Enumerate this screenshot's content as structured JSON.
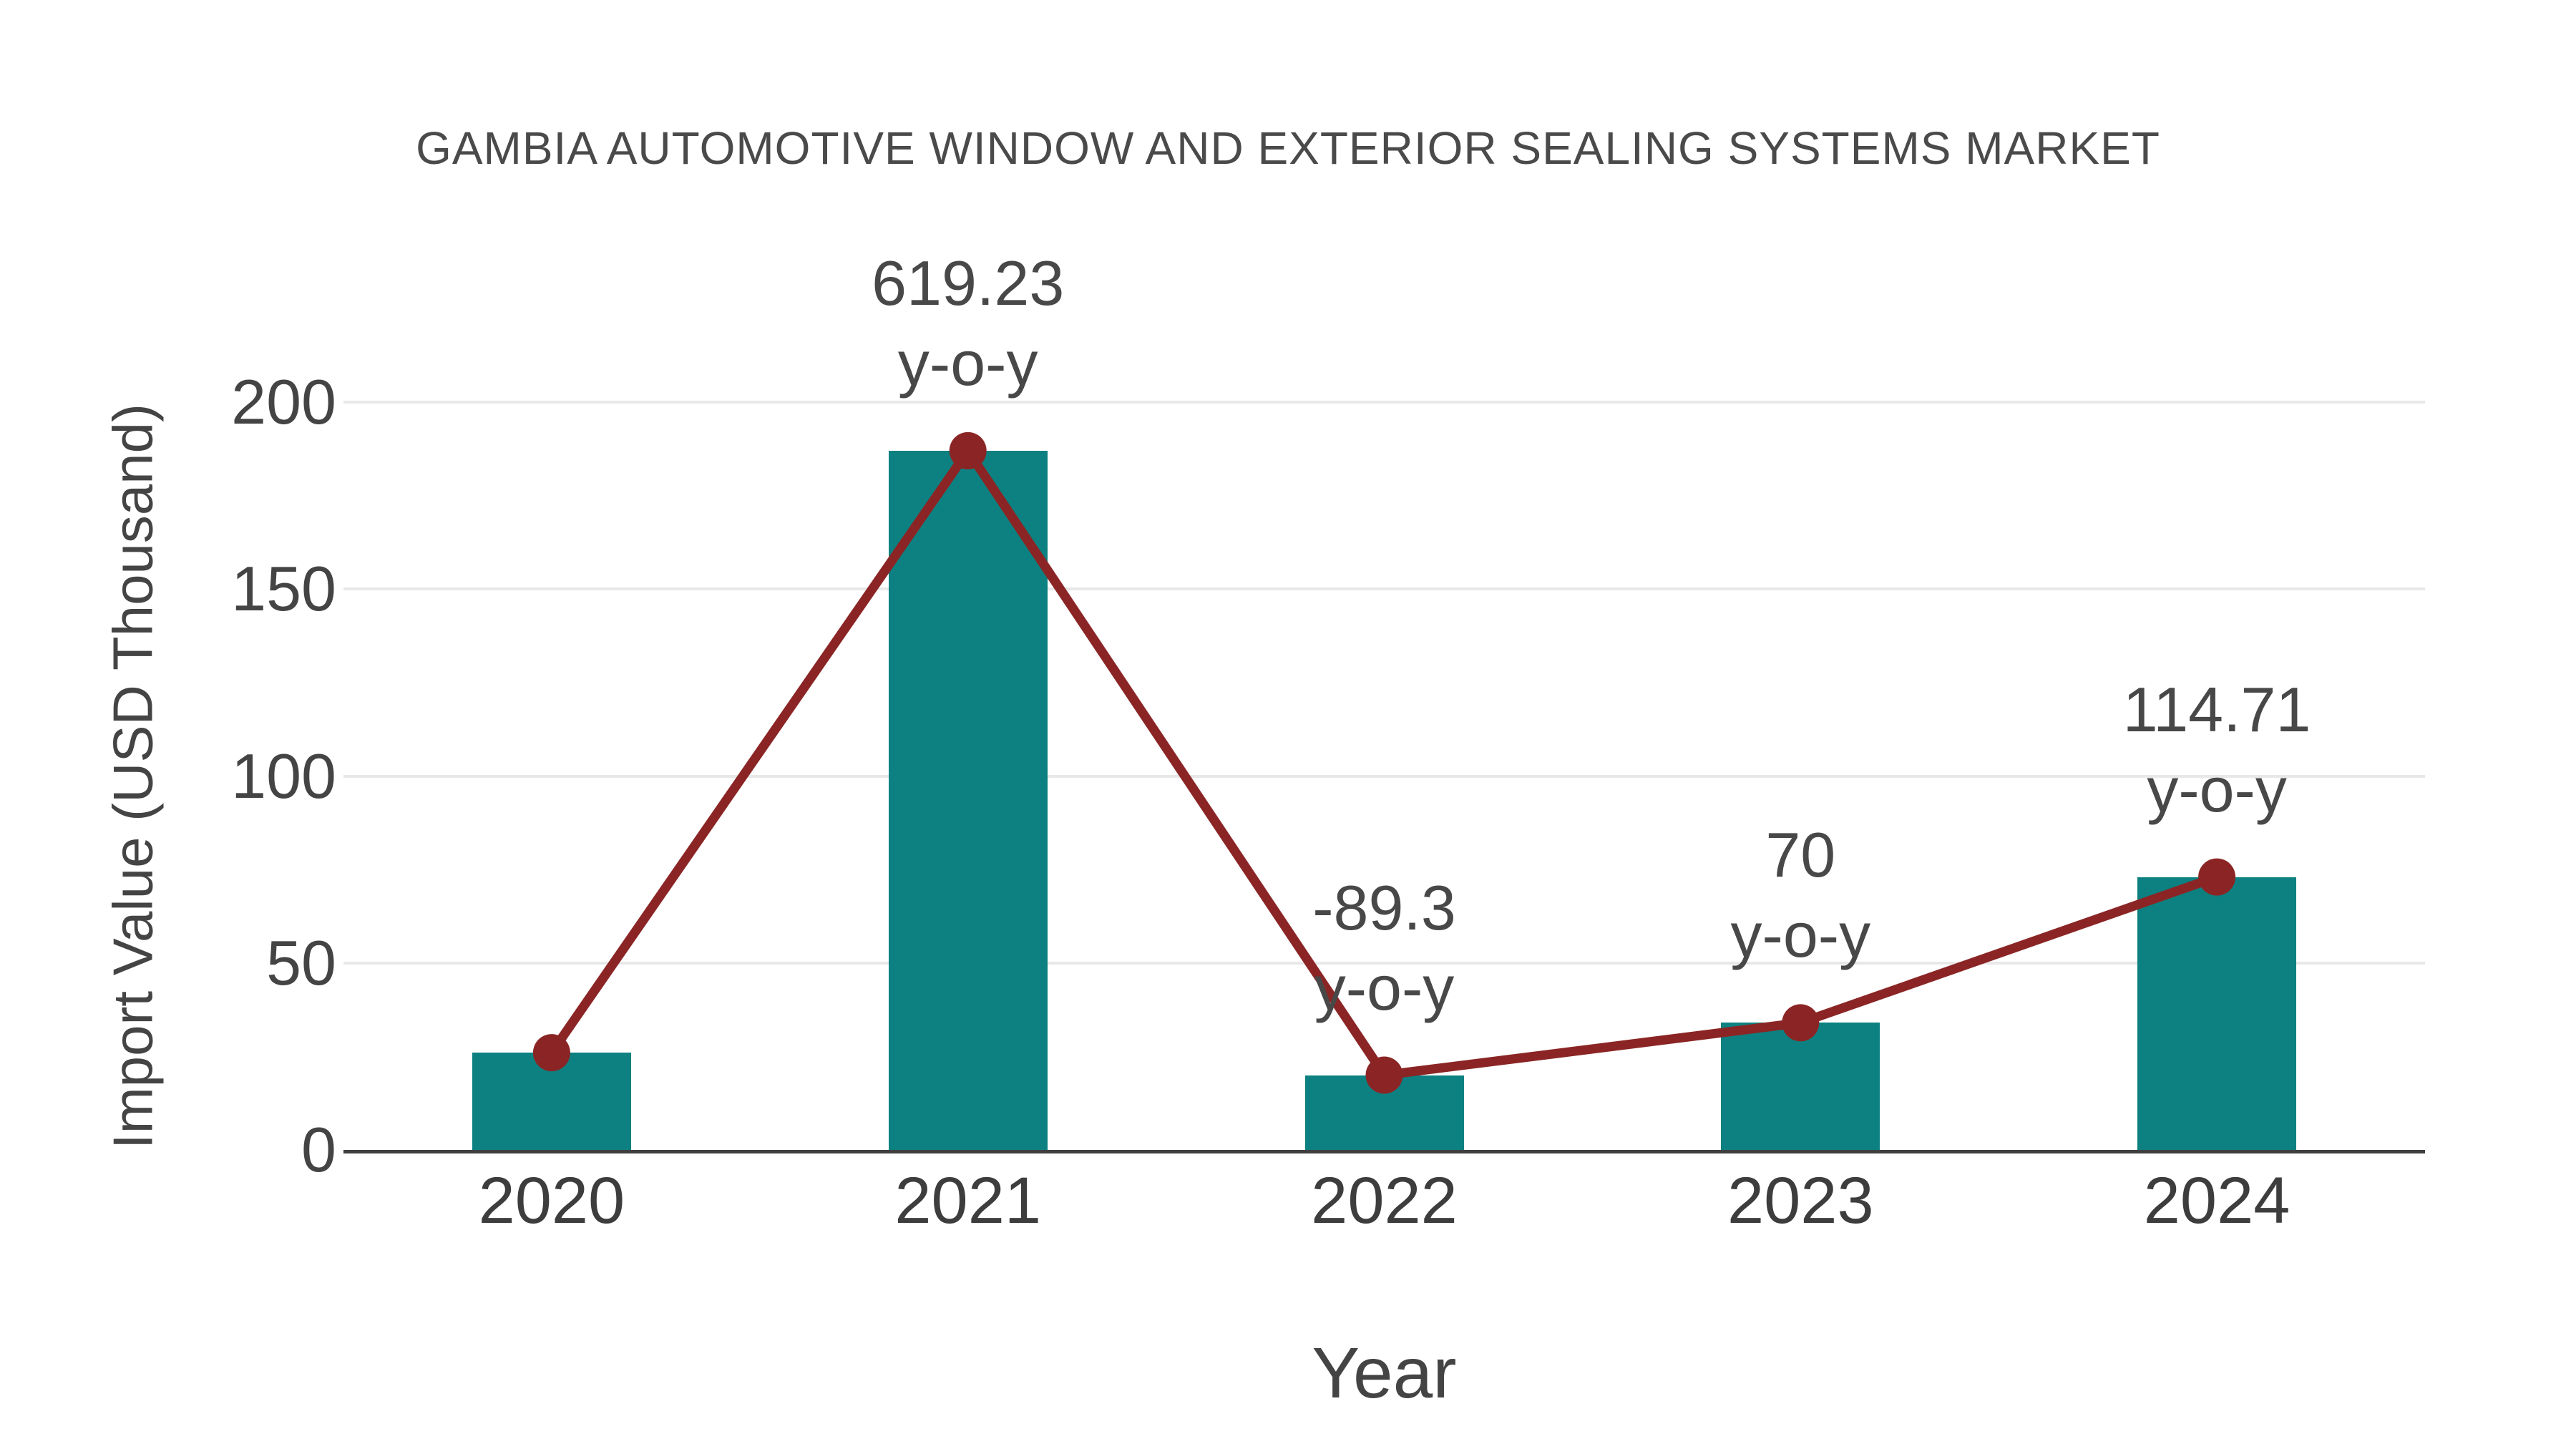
{
  "chart_data": {
    "type": "bar",
    "title": "GAMBIA AUTOMOTIVE WINDOW AND EXTERIOR SEALING SYSTEMS MARKET",
    "xlabel": "Year",
    "ylabel": "Import Value (USD Thousand)",
    "categories": [
      "2020",
      "2021",
      "2022",
      "2023",
      "2024"
    ],
    "series": [
      {
        "name": "Import Value (USD Thousand)",
        "type": "bar",
        "values": [
          26,
          187,
          20,
          34,
          73
        ]
      },
      {
        "name": "Import Value trend",
        "type": "line",
        "values": [
          26,
          187,
          20,
          34,
          73
        ]
      }
    ],
    "annotations": [
      {
        "category": "2021",
        "line1": "619.23",
        "line2": "y-o-y"
      },
      {
        "category": "2022",
        "line1": "-89.3",
        "line2": "y-o-y"
      },
      {
        "category": "2023",
        "line1": "70",
        "line2": "y-o-y"
      },
      {
        "category": "2024",
        "line1": "114.71",
        "line2": "y-o-y"
      }
    ],
    "yticks": [
      0,
      50,
      100,
      150,
      200
    ],
    "ylim": [
      0,
      200
    ],
    "grid": true,
    "legend": "none",
    "colors": {
      "bar": "#0d8181",
      "line": "#8b2525",
      "marker": "#8b2525",
      "text": "#444444",
      "annotation_text": "#484848",
      "grid": "#e8e8e8",
      "axis": "#3f3f3f",
      "title_text": "#4a4a4a"
    }
  }
}
